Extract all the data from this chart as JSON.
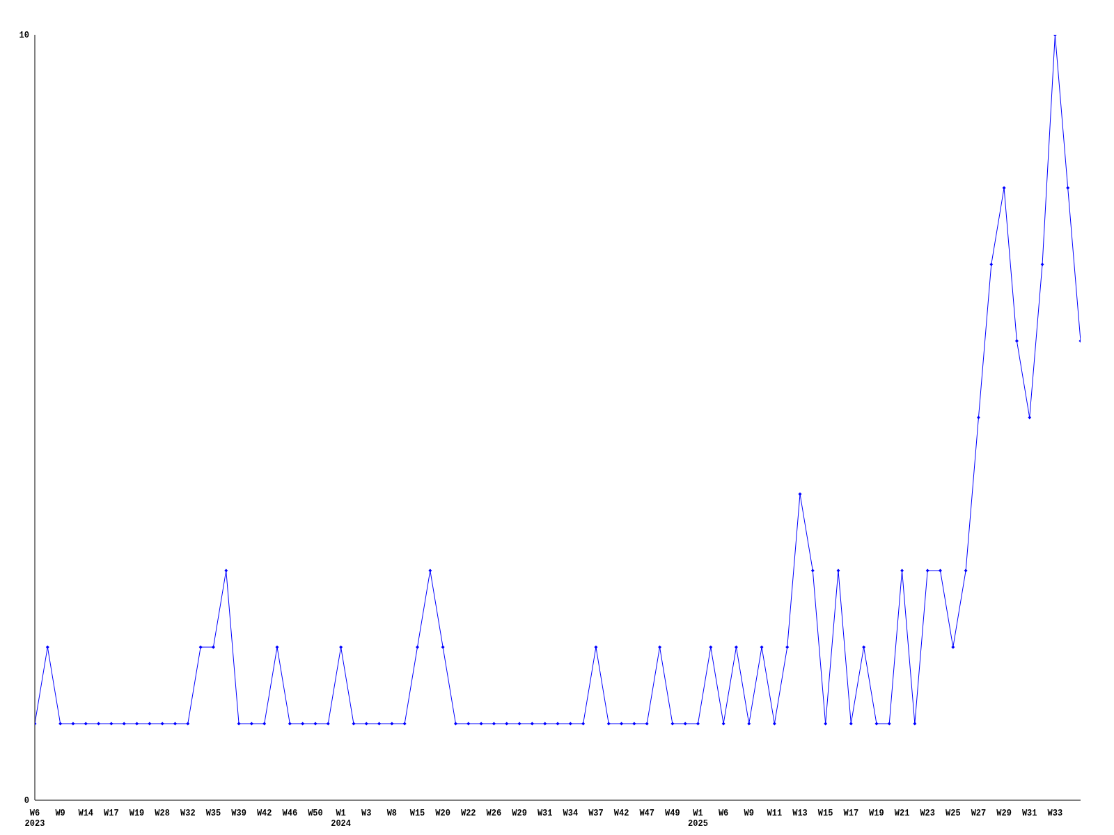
{
  "chart_data": {
    "type": "line",
    "categories": [
      "W6\n2023",
      null,
      "W9",
      null,
      "W14",
      null,
      "W17",
      null,
      "W19",
      null,
      "W28",
      null,
      "W32",
      null,
      "W35",
      null,
      "W39",
      null,
      "W42",
      null,
      "W46",
      null,
      "W50",
      null,
      "W1\n2024",
      null,
      "W3",
      null,
      "W8",
      null,
      "W15",
      null,
      "W20",
      null,
      "W22",
      null,
      "W26",
      null,
      "W29",
      null,
      "W31",
      null,
      "W34",
      null,
      "W37",
      null,
      "W42",
      null,
      "W47",
      null,
      "W49",
      null,
      "W1\n2025",
      null,
      "W6",
      null,
      "W9",
      null,
      "W11",
      null,
      "W13",
      null,
      "W15",
      null,
      "W17",
      null,
      "W19",
      null,
      "W21",
      null,
      "W23",
      null,
      "W25",
      null,
      "W27",
      null,
      "W29",
      null,
      "W31",
      null,
      "W33",
      null,
      null
    ],
    "series": [
      {
        "color": "#0000ff",
        "values": [
          1,
          2,
          1,
          1,
          1,
          1,
          1,
          1,
          1,
          1,
          1,
          1,
          1,
          2,
          2,
          3,
          1,
          1,
          1,
          2,
          1,
          1,
          1,
          1,
          2,
          1,
          1,
          1,
          1,
          1,
          2,
          3,
          2,
          1,
          1,
          1,
          1,
          1,
          1,
          1,
          1,
          1,
          1,
          1,
          2,
          1,
          1,
          1,
          1,
          2,
          1,
          1,
          1,
          2,
          1,
          2,
          1,
          2,
          1,
          2,
          4,
          3,
          1,
          3,
          1,
          2,
          1,
          1,
          3,
          1,
          3,
          3,
          2,
          3,
          5,
          7,
          8,
          6,
          5,
          7,
          10,
          8,
          6
        ]
      }
    ],
    "ylim": [
      0,
      10
    ],
    "yticks": [
      0,
      10
    ],
    "marker": "diamond",
    "line_style": "solid"
  }
}
